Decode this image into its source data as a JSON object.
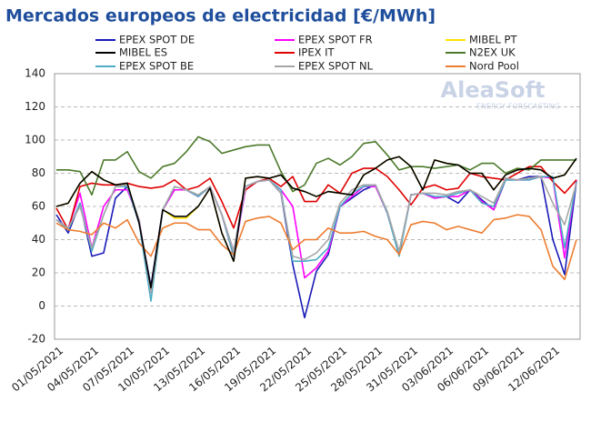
{
  "chart_data": {
    "type": "line",
    "title": "Mercados europeos de electricidad [€/MWh]",
    "annotations": [
      "AleaSoft",
      "ENERGY FORECASTING"
    ],
    "categories": [
      "01/05/2021",
      null,
      null,
      "04/05/2021",
      null,
      null,
      "07/05/2021",
      null,
      null,
      "10/05/2021",
      null,
      null,
      "13/05/2021",
      null,
      null,
      "16/05/2021",
      null,
      null,
      "19/05/2021",
      null,
      null,
      "22/05/2021",
      null,
      null,
      "25/05/2021",
      null,
      null,
      "28/05/2021",
      null,
      null,
      "31/05/2021",
      null,
      null,
      "03/06/2021",
      null,
      null,
      "06/06/2021",
      null,
      null,
      "09/06/2021",
      null,
      null,
      "12/06/2021",
      null,
      null
    ],
    "ylim": [
      -20,
      140
    ],
    "yticks": [
      -20,
      0,
      20,
      40,
      60,
      80,
      100,
      120,
      140
    ],
    "grid": true,
    "series": [
      {
        "name": "EPEX SPOT DE",
        "color": "#1a1ab8",
        "values": [
          55,
          44,
          62,
          30,
          32,
          65,
          72,
          50,
          12,
          58,
          70,
          70,
          66,
          72,
          55,
          33,
          72,
          75,
          76,
          68,
          25,
          -7,
          21,
          31,
          60,
          65,
          70,
          73,
          56,
          31,
          67,
          68,
          65,
          66,
          62,
          70,
          64,
          58,
          76,
          76,
          78,
          78,
          40,
          19,
          75
        ]
      },
      {
        "name": "EPEX SPOT FR",
        "color": "#ff00ff",
        "values": [
          52,
          47,
          68,
          35,
          60,
          70,
          70,
          52,
          8,
          58,
          70,
          70,
          66,
          72,
          55,
          30,
          70,
          75,
          76,
          70,
          60,
          17,
          23,
          33,
          60,
          66,
          72,
          72,
          56,
          31,
          67,
          68,
          65,
          66,
          66,
          70,
          63,
          58,
          77,
          76,
          76,
          78,
          77,
          29,
          76
        ]
      },
      {
        "name": "MIBEL PT",
        "color": "#ffe400",
        "values": [
          60,
          62,
          74,
          81,
          76,
          73,
          74,
          50,
          11,
          58,
          53,
          53,
          60,
          71,
          44,
          27,
          77,
          78,
          77,
          79,
          71,
          69,
          66,
          69,
          68,
          67,
          79,
          83,
          88,
          90,
          84,
          70,
          88,
          86,
          85,
          80,
          80,
          70,
          79,
          82,
          83,
          82,
          77,
          79,
          89
        ]
      },
      {
        "name": "MIBEL ES",
        "color": "#000000",
        "values": [
          60,
          62,
          74,
          81,
          76,
          73,
          74,
          50,
          11,
          58,
          54,
          54,
          60,
          71,
          44,
          27,
          77,
          78,
          77,
          79,
          71,
          69,
          66,
          69,
          68,
          67,
          79,
          83,
          88,
          90,
          84,
          70,
          88,
          86,
          85,
          80,
          80,
          70,
          79,
          82,
          83,
          82,
          77,
          79,
          89
        ]
      },
      {
        "name": "IPEX IT",
        "color": "#e00000",
        "values": [
          59,
          46,
          72,
          74,
          73,
          73,
          74,
          72,
          71,
          72,
          76,
          70,
          72,
          77,
          63,
          47,
          70,
          75,
          77,
          72,
          78,
          63,
          63,
          73,
          68,
          80,
          83,
          83,
          78,
          70,
          61,
          71,
          73,
          70,
          71,
          80,
          78,
          77,
          76,
          80,
          84,
          84,
          75,
          68,
          76
        ]
      },
      {
        "name": "N2EX UK",
        "color": "#4c7a2b",
        "values": [
          82,
          82,
          81,
          67,
          88,
          88,
          93,
          81,
          77,
          84,
          86,
          93,
          102,
          99,
          92,
          94,
          96,
          97,
          97,
          81,
          69,
          73,
          86,
          89,
          85,
          90,
          98,
          99,
          91,
          82,
          84,
          84,
          83,
          84,
          85,
          82,
          86,
          86,
          80,
          83,
          82,
          88,
          88,
          88,
          88
        ]
      },
      {
        "name": "EPEX SPOT BE",
        "color": "#4bacc6",
        "values": [
          52,
          46,
          62,
          33,
          55,
          72,
          72,
          50,
          3,
          58,
          72,
          70,
          66,
          72,
          55,
          30,
          72,
          75,
          76,
          70,
          27,
          27,
          28,
          35,
          60,
          68,
          72,
          73,
          56,
          30,
          67,
          68,
          66,
          66,
          68,
          70,
          62,
          60,
          76,
          76,
          76,
          78,
          78,
          35,
          75
        ]
      },
      {
        "name": "EPEX SPOT NL",
        "color": "#a6a6a6",
        "values": [
          52,
          47,
          60,
          35,
          55,
          72,
          73,
          52,
          8,
          58,
          72,
          70,
          67,
          72,
          55,
          33,
          72,
          75,
          76,
          68,
          30,
          28,
          32,
          40,
          62,
          70,
          73,
          73,
          57,
          33,
          67,
          68,
          68,
          67,
          69,
          70,
          66,
          62,
          77,
          76,
          77,
          78,
          62,
          49,
          74
        ]
      },
      {
        "name": "Nord Pool",
        "color": "#ed7d31",
        "values": [
          50,
          46,
          45,
          43,
          50,
          47,
          52,
          38,
          30,
          47,
          50,
          50,
          46,
          46,
          37,
          31,
          51,
          53,
          54,
          50,
          34,
          40,
          40,
          47,
          44,
          44,
          45,
          42,
          40,
          31,
          49,
          51,
          50,
          46,
          48,
          46,
          44,
          52,
          53,
          55,
          54,
          46,
          24,
          16,
          40
        ]
      }
    ]
  }
}
